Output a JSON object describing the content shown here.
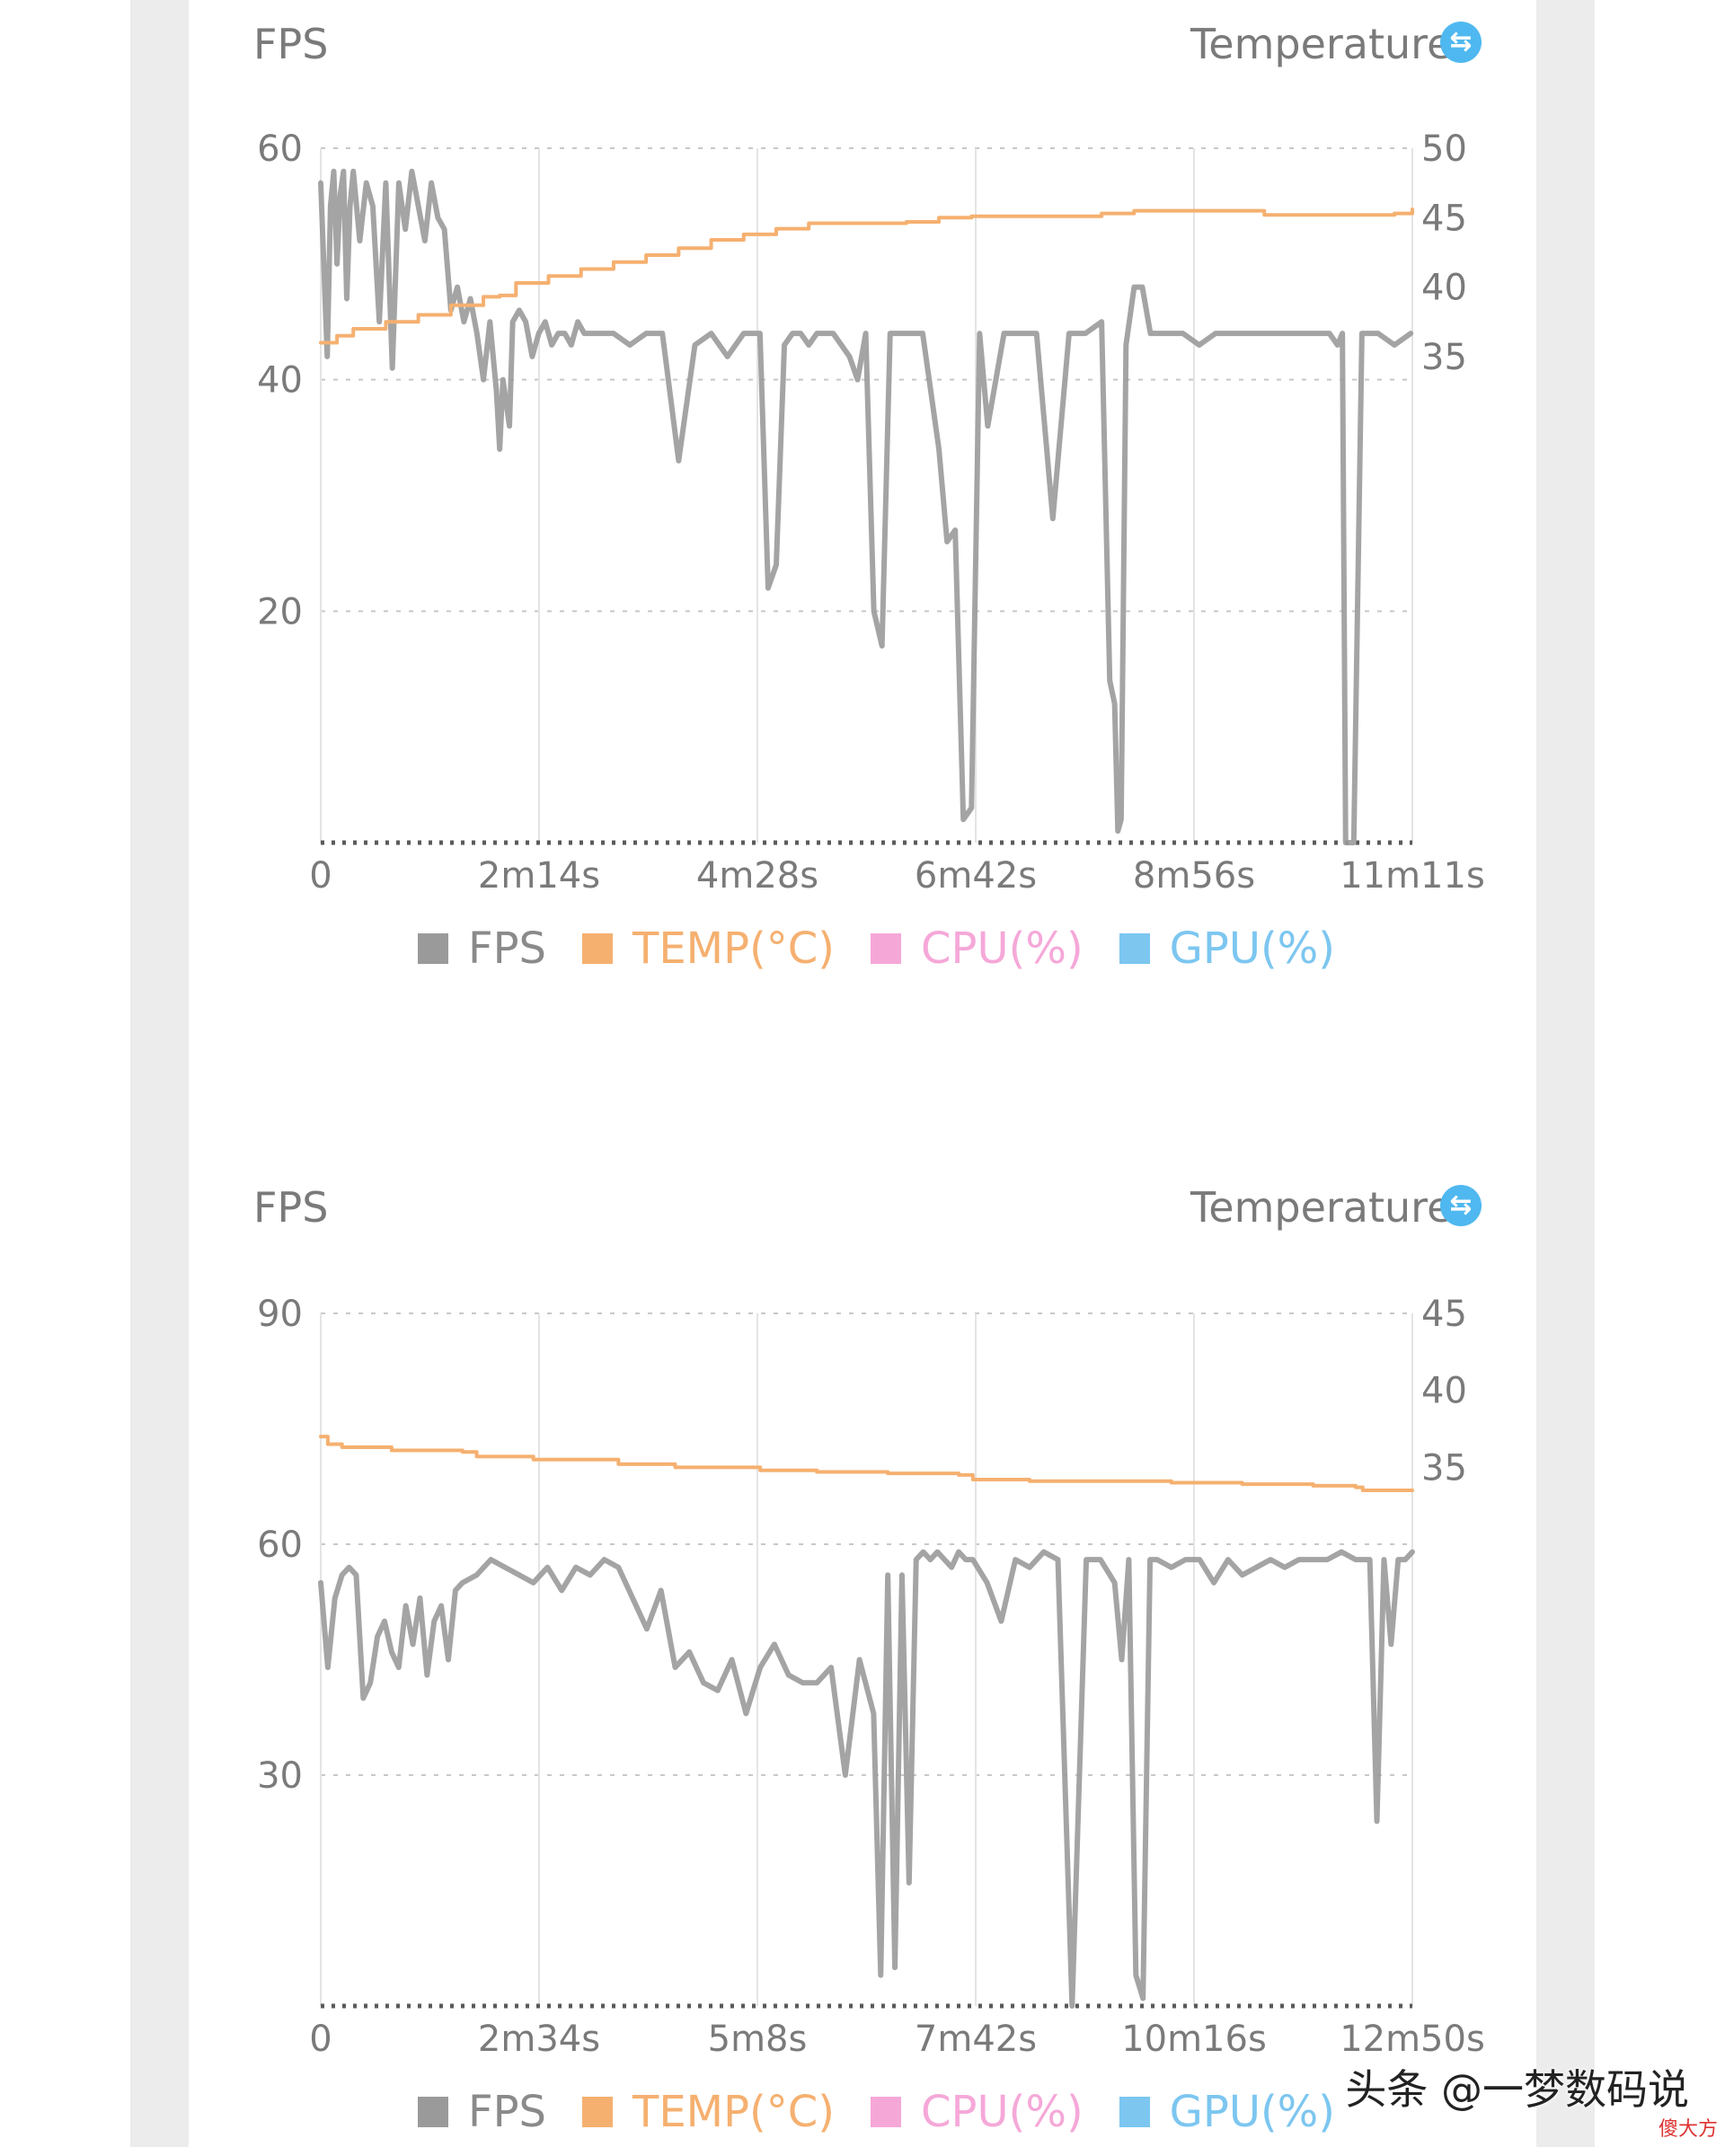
{
  "charts": [
    {
      "left_title": "FPS",
      "right_title": "Temperature",
      "swap_icon": "swap-icon",
      "legend": [
        {
          "label": "FPS",
          "color": "#9a9a9a"
        },
        {
          "label": "TEMP(°C)",
          "color": "#f5b070"
        },
        {
          "label": "CPU(%)",
          "color": "#f5a8d8"
        },
        {
          "label": "GPU(%)",
          "color": "#7cc6f0"
        }
      ]
    },
    {
      "left_title": "FPS",
      "right_title": "Temperature",
      "swap_icon": "swap-icon",
      "legend": [
        {
          "label": "FPS",
          "color": "#9a9a9a"
        },
        {
          "label": "TEMP(°C)",
          "color": "#f5b070"
        },
        {
          "label": "CPU(%)",
          "color": "#f5a8d8"
        },
        {
          "label": "GPU(%)",
          "color": "#7cc6f0"
        }
      ]
    }
  ],
  "chart_data": [
    {
      "type": "line",
      "x_tick_labels": [
        "0",
        "2m14s",
        "4m28s",
        "6m42s",
        "8m56s",
        "11m11s"
      ],
      "x_range_seconds": [
        0,
        671
      ],
      "y_left_ticks": [
        20,
        40,
        60
      ],
      "y_left_range": [
        0,
        60
      ],
      "y_right_ticks": [
        35,
        40,
        45,
        50
      ],
      "y_right_range": [
        0,
        50
      ],
      "grid": true,
      "series": [
        {
          "name": "FPS",
          "color": "#9a9a9a",
          "x": [
            0,
            4,
            6,
            8,
            10,
            12,
            14,
            16,
            18,
            20,
            24,
            28,
            32,
            36,
            40,
            44,
            48,
            52,
            56,
            60,
            64,
            68,
            72,
            76,
            80,
            84,
            88,
            92,
            96,
            100,
            104,
            108,
            110,
            112,
            116,
            118,
            122,
            126,
            130,
            134,
            138,
            142,
            146,
            150,
            154,
            158,
            162,
            170,
            180,
            190,
            200,
            210,
            220,
            230,
            240,
            250,
            255,
            260,
            270,
            275,
            280,
            285,
            290,
            295,
            300,
            305,
            310,
            315,
            320,
            325,
            330,
            335,
            340,
            345,
            350,
            360,
            370,
            380,
            385,
            390,
            395,
            400,
            405,
            410,
            420,
            430,
            440,
            450,
            460,
            470,
            480,
            485,
            488,
            490,
            492,
            495,
            500,
            505,
            510,
            520,
            530,
            540,
            550,
            560,
            570,
            580,
            590,
            600,
            610,
            620,
            625,
            628,
            630,
            635,
            640,
            650,
            660,
            670
          ],
          "y": [
            57,
            42,
            55,
            58,
            50,
            56,
            58,
            47,
            55,
            58,
            52,
            57,
            55,
            45,
            57,
            41,
            57,
            53,
            58,
            55,
            52,
            57,
            54,
            53,
            46,
            48,
            45,
            47,
            44,
            40,
            45,
            39,
            34,
            40,
            36,
            45,
            46,
            45,
            42,
            44,
            45,
            43,
            44,
            44,
            43,
            45,
            44,
            44,
            44,
            43,
            44,
            44,
            33,
            43,
            44,
            42,
            43,
            44,
            44,
            22,
            24,
            43,
            44,
            44,
            43,
            44,
            44,
            44,
            43,
            42,
            40,
            44,
            20,
            17,
            44,
            44,
            44,
            34,
            26,
            27,
            2,
            3,
            44,
            36,
            44,
            44,
            44,
            28,
            44,
            44,
            45,
            14,
            12,
            1,
            2,
            43,
            48,
            48,
            44,
            44,
            44,
            43,
            44,
            44,
            44,
            44,
            44,
            44,
            44,
            44,
            43,
            44,
            0,
            0,
            44,
            44,
            43,
            44
          ]
        },
        {
          "name": "TEMP(°C)",
          "color": "#f5b070",
          "x": [
            0,
            10,
            20,
            40,
            60,
            80,
            100,
            110,
            120,
            140,
            160,
            180,
            200,
            220,
            240,
            260,
            280,
            300,
            320,
            340,
            360,
            380,
            400,
            420,
            440,
            460,
            480,
            500,
            520,
            540,
            560,
            580,
            600,
            620,
            640,
            660,
            671
          ],
          "y": [
            36,
            36.5,
            37,
            37.5,
            38,
            38.7,
            39.3,
            39.4,
            40.3,
            40.8,
            41.3,
            41.8,
            42.3,
            42.8,
            43.4,
            43.8,
            44.2,
            44.6,
            44.6,
            44.6,
            44.7,
            45,
            45.1,
            45.1,
            45.1,
            45.1,
            45.3,
            45.5,
            45.5,
            45.5,
            45.5,
            45.2,
            45.2,
            45.2,
            45.2,
            45.3,
            45.6
          ]
        }
      ]
    },
    {
      "type": "line",
      "x_tick_labels": [
        "0",
        "2m34s",
        "5m8s",
        "7m42s",
        "10m16s",
        "12m50s"
      ],
      "x_range_seconds": [
        0,
        770
      ],
      "y_left_ticks": [
        30,
        60,
        90
      ],
      "y_left_range": [
        0,
        90
      ],
      "y_right_ticks": [
        35,
        40,
        45
      ],
      "y_right_range": [
        0,
        45
      ],
      "grid": true,
      "series": [
        {
          "name": "FPS",
          "color": "#9a9a9a",
          "x": [
            0,
            5,
            10,
            15,
            20,
            25,
            30,
            35,
            40,
            45,
            50,
            55,
            60,
            65,
            70,
            75,
            80,
            85,
            90,
            95,
            100,
            110,
            120,
            130,
            140,
            150,
            160,
            170,
            180,
            190,
            200,
            210,
            220,
            230,
            240,
            250,
            260,
            270,
            280,
            290,
            300,
            310,
            320,
            330,
            340,
            350,
            360,
            370,
            380,
            390,
            395,
            400,
            405,
            410,
            415,
            420,
            425,
            430,
            435,
            440,
            445,
            450,
            455,
            460,
            470,
            480,
            490,
            500,
            510,
            520,
            530,
            540,
            550,
            560,
            565,
            570,
            575,
            580,
            585,
            590,
            600,
            610,
            620,
            630,
            640,
            650,
            660,
            670,
            680,
            690,
            700,
            710,
            720,
            730,
            740,
            745,
            750,
            755,
            760,
            765,
            770
          ],
          "y": [
            55,
            44,
            53,
            56,
            57,
            56,
            40,
            42,
            48,
            50,
            46,
            44,
            52,
            47,
            53,
            43,
            50,
            52,
            45,
            54,
            55,
            56,
            58,
            57,
            56,
            55,
            57,
            54,
            57,
            56,
            58,
            57,
            53,
            49,
            54,
            44,
            46,
            42,
            41,
            45,
            38,
            44,
            47,
            43,
            42,
            42,
            44,
            30,
            45,
            38,
            4,
            56,
            5,
            56,
            16,
            58,
            59,
            58,
            59,
            58,
            57,
            59,
            58,
            58,
            55,
            50,
            58,
            57,
            59,
            58,
            0,
            58,
            58,
            55,
            45,
            58,
            4,
            1,
            58,
            58,
            57,
            58,
            58,
            55,
            58,
            56,
            57,
            58,
            57,
            58,
            58,
            58,
            59,
            58,
            58,
            24,
            58,
            47,
            58,
            58,
            59
          ]
        },
        {
          "name": "TEMP(°C)",
          "color": "#f5b070",
          "x": [
            0,
            5,
            15,
            50,
            100,
            110,
            150,
            200,
            210,
            250,
            300,
            310,
            350,
            400,
            450,
            460,
            500,
            550,
            600,
            650,
            700,
            730,
            735,
            770
          ],
          "y": [
            37,
            36.5,
            36.3,
            36.1,
            36,
            35.7,
            35.5,
            35.5,
            35.2,
            35,
            35,
            34.8,
            34.7,
            34.6,
            34.5,
            34.2,
            34.1,
            34.1,
            34,
            33.9,
            33.8,
            33.7,
            33.5,
            33.5
          ]
        }
      ]
    }
  ],
  "watermark": "头条 @一梦数码说",
  "watermark_small": "傻大方"
}
